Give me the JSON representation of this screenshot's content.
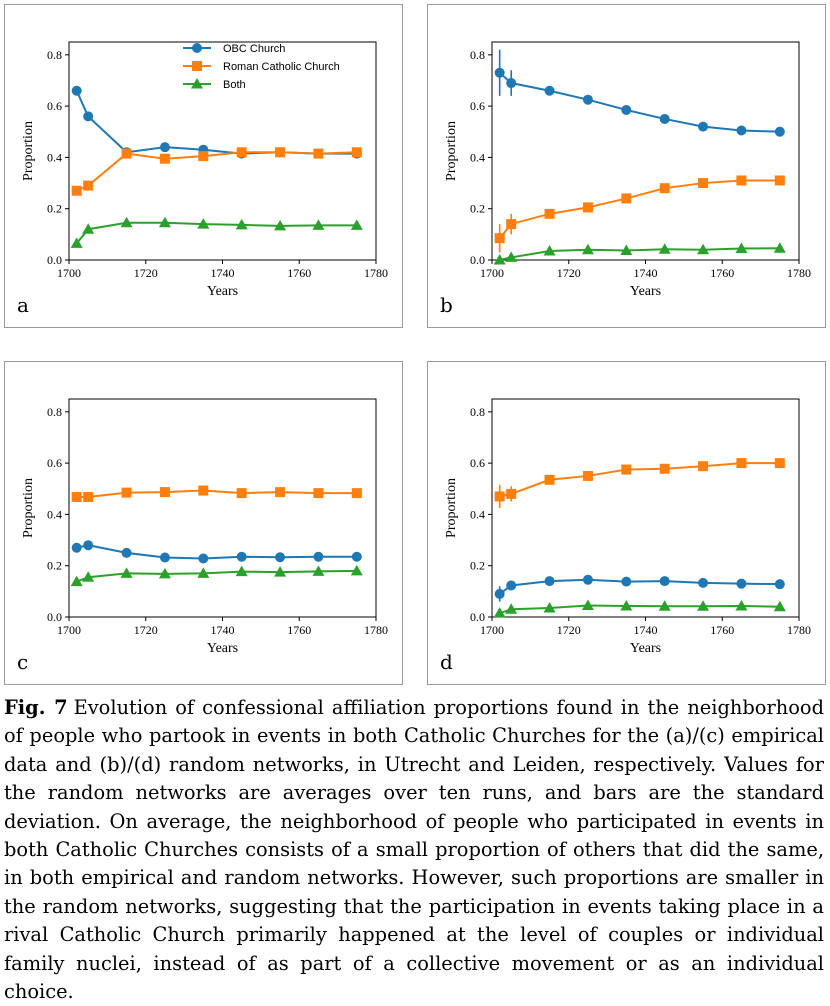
{
  "colors": {
    "obc": "#1f77b4",
    "rcc": "#ff7f0e",
    "both": "#2ca02c"
  },
  "chart_data": [
    {
      "panel": "a",
      "type": "line",
      "xlabel": "Years",
      "ylabel": "Proportion",
      "xlim": [
        1700,
        1780
      ],
      "ylim": [
        0,
        0.85
      ],
      "xticks": [
        "1700",
        "1720",
        "1740",
        "1760",
        "1780"
      ],
      "yticks": [
        "0.0",
        "0.2",
        "0.4",
        "0.6",
        "0.8"
      ],
      "legend": "top-center",
      "x": [
        1702,
        1705,
        1715,
        1725,
        1735,
        1745,
        1755,
        1765,
        1775
      ],
      "series": [
        {
          "name": "OBC Church",
          "marker": "circle",
          "color": "#1f77b4",
          "values": [
            0.66,
            0.56,
            0.42,
            0.44,
            0.43,
            0.415,
            0.42,
            0.415,
            0.415
          ]
        },
        {
          "name": "Roman Catholic Church",
          "marker": "square",
          "color": "#ff7f0e",
          "values": [
            0.27,
            0.29,
            0.415,
            0.395,
            0.405,
            0.42,
            0.42,
            0.415,
            0.42
          ]
        },
        {
          "name": "Both",
          "marker": "triangle",
          "color": "#2ca02c",
          "values": [
            0.065,
            0.12,
            0.145,
            0.145,
            0.14,
            0.137,
            0.133,
            0.135,
            0.135
          ]
        }
      ]
    },
    {
      "panel": "b",
      "type": "line",
      "xlabel": "Years",
      "ylabel": "Proportion",
      "xlim": [
        1700,
        1780
      ],
      "ylim": [
        0,
        0.85
      ],
      "xticks": [
        "1700",
        "1720",
        "1740",
        "1760",
        "1780"
      ],
      "yticks": [
        "0.0",
        "0.2",
        "0.4",
        "0.6",
        "0.8"
      ],
      "x": [
        1702,
        1705,
        1715,
        1725,
        1735,
        1745,
        1755,
        1765,
        1775
      ],
      "series": [
        {
          "name": "OBC Church",
          "marker": "circle",
          "color": "#1f77b4",
          "values": [
            0.73,
            0.69,
            0.66,
            0.625,
            0.585,
            0.55,
            0.52,
            0.505,
            0.5
          ],
          "errors": [
            0.09,
            0.05,
            0.005,
            0.005,
            0.004,
            0.004,
            0.004,
            0.004,
            0.004
          ]
        },
        {
          "name": "Roman Catholic Church",
          "marker": "square",
          "color": "#ff7f0e",
          "values": [
            0.085,
            0.14,
            0.18,
            0.205,
            0.24,
            0.28,
            0.3,
            0.31,
            0.31
          ],
          "errors": [
            0.055,
            0.04,
            0.005,
            0.005,
            0.004,
            0.004,
            0.004,
            0.004,
            0.004
          ]
        },
        {
          "name": "Both",
          "marker": "triangle",
          "color": "#2ca02c",
          "values": [
            0.0,
            0.01,
            0.035,
            0.04,
            0.037,
            0.042,
            0.04,
            0.045,
            0.046
          ],
          "errors": [
            0.005,
            0.005,
            0.002,
            0.002,
            0.002,
            0.002,
            0.002,
            0.002,
            0.002
          ]
        }
      ]
    },
    {
      "panel": "c",
      "type": "line",
      "xlabel": "Years",
      "ylabel": "Proportion",
      "xlim": [
        1700,
        1780
      ],
      "ylim": [
        0,
        0.85
      ],
      "xticks": [
        "1700",
        "1720",
        "1740",
        "1760",
        "1780"
      ],
      "yticks": [
        "0.0",
        "0.2",
        "0.4",
        "0.6",
        "0.8"
      ],
      "x": [
        1702,
        1705,
        1715,
        1725,
        1735,
        1745,
        1755,
        1765,
        1775
      ],
      "series": [
        {
          "name": "OBC Church",
          "marker": "circle",
          "color": "#1f77b4",
          "values": [
            0.27,
            0.28,
            0.25,
            0.232,
            0.228,
            0.235,
            0.233,
            0.235,
            0.235
          ]
        },
        {
          "name": "Roman Catholic Church",
          "marker": "square",
          "color": "#ff7f0e",
          "values": [
            0.468,
            0.468,
            0.485,
            0.487,
            0.493,
            0.483,
            0.487,
            0.483,
            0.483
          ]
        },
        {
          "name": "Both",
          "marker": "triangle",
          "color": "#2ca02c",
          "values": [
            0.138,
            0.155,
            0.17,
            0.168,
            0.17,
            0.177,
            0.175,
            0.178,
            0.18
          ]
        }
      ]
    },
    {
      "panel": "d",
      "type": "line",
      "xlabel": "Years",
      "ylabel": "Proportion",
      "xlim": [
        1700,
        1780
      ],
      "ylim": [
        0,
        0.85
      ],
      "xticks": [
        "1700",
        "1720",
        "1740",
        "1760",
        "1780"
      ],
      "yticks": [
        "0.0",
        "0.2",
        "0.4",
        "0.6",
        "0.8"
      ],
      "x": [
        1702,
        1705,
        1715,
        1725,
        1735,
        1745,
        1755,
        1765,
        1775
      ],
      "series": [
        {
          "name": "OBC Church",
          "marker": "circle",
          "color": "#1f77b4",
          "values": [
            0.09,
            0.123,
            0.14,
            0.145,
            0.138,
            0.14,
            0.133,
            0.13,
            0.128
          ],
          "errors": [
            0.03,
            0.015,
            0.004,
            0.004,
            0.003,
            0.003,
            0.003,
            0.003,
            0.003
          ]
        },
        {
          "name": "Roman Catholic Church",
          "marker": "square",
          "color": "#ff7f0e",
          "values": [
            0.47,
            0.48,
            0.535,
            0.55,
            0.575,
            0.578,
            0.588,
            0.6,
            0.6
          ],
          "errors": [
            0.045,
            0.03,
            0.005,
            0.005,
            0.004,
            0.004,
            0.004,
            0.004,
            0.004
          ]
        },
        {
          "name": "Both",
          "marker": "triangle",
          "color": "#2ca02c",
          "values": [
            0.015,
            0.03,
            0.035,
            0.045,
            0.043,
            0.042,
            0.042,
            0.043,
            0.04
          ],
          "errors": [
            0.005,
            0.004,
            0.002,
            0.002,
            0.002,
            0.002,
            0.002,
            0.002,
            0.002
          ]
        }
      ]
    }
  ],
  "caption": {
    "label": "Fig. 7",
    "text": "Evolution of confessional affiliation proportions found in the neighbor­hood of people who partook in events in both Catholic Churches for the (a)/(c) empirical data and (b)/(d) random networks, in Utrecht and Leiden, respec­tively. Values for the random networks are averages over ten runs, and bars are the standard deviation. On average, the neighborhood of people who partici­pated in events in both Catholic Churches consists of a small proportion of others that did the same, in both empirical and random networks. However, such proportions are smaller in the random networks, suggesting that the par­ticipation in events taking place in a rival Catholic Church primarily happened at the level of couples or individual family nuclei, instead of as part of a collec­tive movement or as an individual choice."
  }
}
